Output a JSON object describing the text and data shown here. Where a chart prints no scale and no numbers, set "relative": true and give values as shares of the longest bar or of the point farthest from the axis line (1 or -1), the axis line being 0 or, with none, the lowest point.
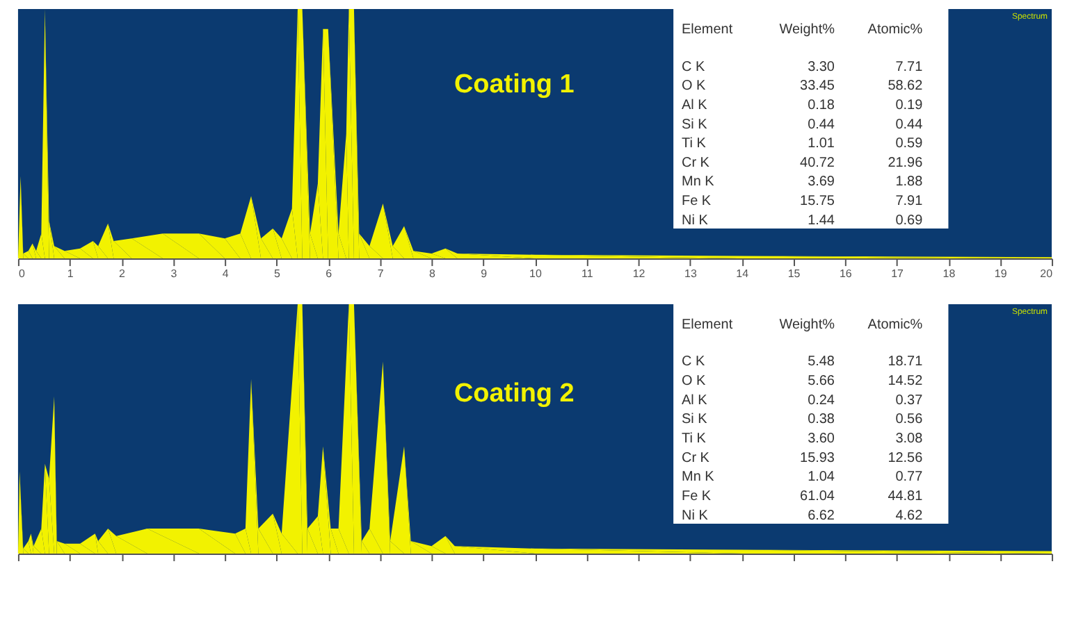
{
  "chart_data": [
    {
      "type": "area",
      "relative": true,
      "xlim": [
        0,
        20
      ],
      "xticks": [
        0,
        1,
        2,
        3,
        4,
        5,
        6,
        7,
        8,
        9,
        10,
        11,
        12,
        13,
        14,
        15,
        16,
        17,
        18,
        19,
        20
      ],
      "x": [
        0,
        0.05,
        0.1,
        0.2,
        0.28,
        0.35,
        0.45,
        0.52,
        0.6,
        0.7,
        0.9,
        1.2,
        1.45,
        1.55,
        1.74,
        1.85,
        2.2,
        2.8,
        3.5,
        4.0,
        4.3,
        4.51,
        4.7,
        4.93,
        5.1,
        5.3,
        5.41,
        5.5,
        5.65,
        5.8,
        5.9,
        6.0,
        6.2,
        6.35,
        6.4,
        6.5,
        6.6,
        6.8,
        7.06,
        7.25,
        7.47,
        7.65,
        8.0,
        8.27,
        8.5,
        10,
        14,
        20
      ],
      "series": [
        {
          "color": "#f2f200",
          "values": [
            0,
            0.33,
            0.02,
            0.03,
            0.06,
            0.03,
            0.1,
            1,
            0.15,
            0.05,
            0.03,
            0.04,
            0.07,
            0.05,
            0.14,
            0.07,
            0.08,
            0.1,
            0.1,
            0.08,
            0.1,
            0.25,
            0.08,
            0.12,
            0.08,
            0.2,
            1,
            1,
            0.1,
            0.3,
            0.92,
            0.92,
            0.1,
            0.5,
            1,
            1,
            0.1,
            0.05,
            0.22,
            0.05,
            0.13,
            0.03,
            0.02,
            0.04,
            0.02,
            0.015,
            0.01,
            0.005
          ]
        }
      ],
      "annotations": [
        "Coating 1",
        "Spectrum",
        "Element",
        "Weight%",
        "Atomic%",
        "C K",
        "3.30",
        "7.71",
        "O K",
        "33.45",
        "58.62",
        "Al K",
        "0.18",
        "0.19",
        "Si K",
        "0.44",
        "0.44",
        "Ti K",
        "1.01",
        "0.59",
        "Cr K",
        "40.72",
        "21.96",
        "Mn K",
        "3.69",
        "1.88",
        "Fe K",
        "15.75",
        "7.91",
        "Ni K",
        "1.44",
        "0.69"
      ]
    },
    {
      "type": "area",
      "relative": true,
      "xlim": [
        0,
        20
      ],
      "xticks": [
        0,
        1,
        2,
        3,
        4,
        5,
        6,
        7,
        8,
        9,
        10,
        11,
        12,
        13,
        14,
        15,
        16,
        17,
        18,
        19,
        20
      ],
      "tick_labels": false,
      "x": [
        0,
        0.03,
        0.1,
        0.2,
        0.25,
        0.3,
        0.45,
        0.52,
        0.6,
        0.7,
        0.75,
        0.9,
        1.2,
        1.49,
        1.55,
        1.74,
        1.9,
        2.5,
        3.5,
        4.2,
        4.4,
        4.51,
        4.65,
        4.93,
        5.1,
        5.41,
        5.5,
        5.6,
        5.8,
        5.9,
        6.05,
        6.2,
        6.4,
        6.5,
        6.65,
        6.8,
        7.06,
        7.2,
        7.47,
        7.6,
        8.0,
        8.27,
        8.45,
        10,
        14,
        20
      ],
      "series": [
        {
          "color": "#f2f200",
          "values": [
            0,
            0.33,
            0.02,
            0.05,
            0.08,
            0.03,
            0.1,
            0.36,
            0.3,
            0.63,
            0.05,
            0.04,
            0.04,
            0.08,
            0.05,
            0.1,
            0.07,
            0.1,
            0.1,
            0.08,
            0.1,
            0.7,
            0.1,
            0.16,
            0.08,
            1,
            1,
            0.1,
            0.15,
            0.43,
            0.1,
            0.1,
            1,
            1,
            0.05,
            0.1,
            0.77,
            0.05,
            0.43,
            0.05,
            0.03,
            0.07,
            0.03,
            0.02,
            0.015,
            0.01
          ]
        }
      ],
      "annotations": [
        "Coating 2",
        "Spectrum",
        "Element",
        "Weight%",
        "Atomic%",
        "C K",
        "5.48",
        "18.71",
        "O K",
        "5.66",
        "14.52",
        "Al K",
        "0.24",
        "0.37",
        "Si K",
        "0.38",
        "0.56",
        "Ti K",
        "3.60",
        "3.08",
        "Cr K",
        "15.93",
        "12.56",
        "Mn K",
        "1.04",
        "0.77",
        "Fe K",
        "61.04",
        "44.81",
        "Ni K",
        "6.62",
        "4.62"
      ]
    }
  ]
}
